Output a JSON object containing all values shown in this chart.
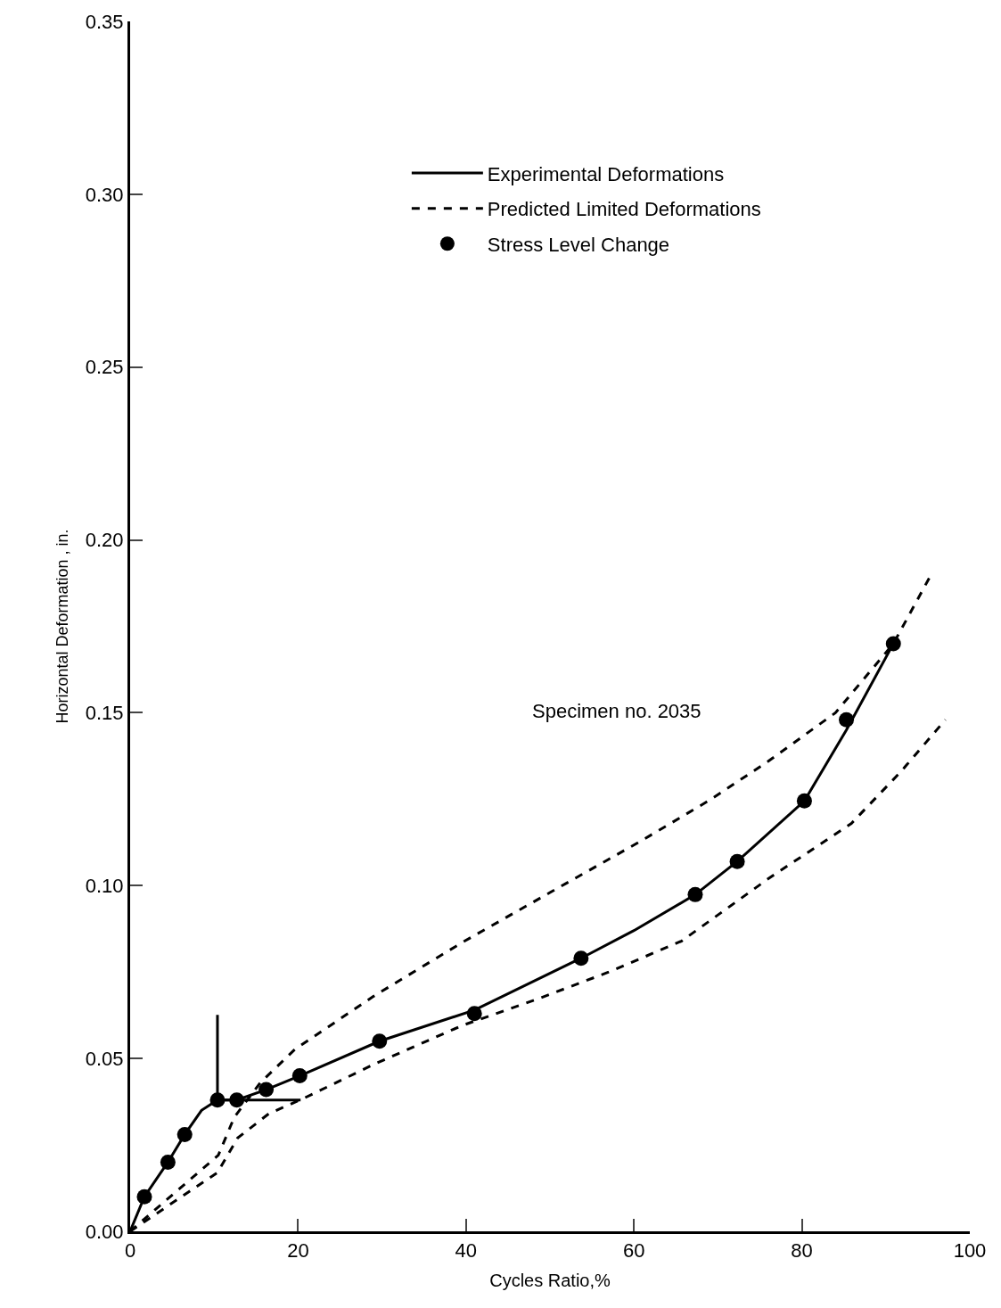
{
  "chart_data": {
    "type": "line",
    "xlabel": "Cycles Ratio,%",
    "ylabel": "Horizontal Deformation , in.",
    "xlim": [
      0,
      100
    ],
    "xticks": [
      0,
      20,
      40,
      60,
      80,
      100
    ],
    "ylim": [
      0,
      0.35
    ],
    "yticks": [
      {
        "value": 0,
        "label": "0.00"
      },
      {
        "value": 0.05,
        "label": "0.05"
      },
      {
        "value": 0.1,
        "label": "0.10"
      },
      {
        "value": 0.15,
        "label": "0.15"
      },
      {
        "value": 0.2,
        "label": "0.20"
      },
      {
        "value": 0.25,
        "label": "0.25"
      },
      {
        "value": 0.3,
        "label": "0.30"
      },
      {
        "value": 0.35,
        "label": "0.35"
      }
    ],
    "legend": "top right",
    "annotations": [
      "Specimen no. 2035"
    ],
    "series": [
      {
        "name": "Experimental Deformations",
        "color": "#000000",
        "line_style": "solid",
        "marker": "none",
        "x": [
          0,
          1.7,
          4.5,
          6.5,
          8.5,
          10.4,
          12.7,
          16.2,
          20.2,
          29.7,
          41,
          53.7,
          60,
          67.3,
          72.3,
          80.3,
          85.3,
          90.9
        ],
        "values": [
          0,
          0.01,
          0.02,
          0.028,
          0.035,
          0.038,
          0.038,
          0.041,
          0.045,
          0.055,
          0.064,
          0.079,
          0.087,
          0.0974,
          0.107,
          0.1245,
          0.145,
          0.17
        ]
      },
      {
        "name": "Predicted Limited Deformations",
        "color": "#000000",
        "line_style": "dashed",
        "marker": "none",
        "x": [
          0,
          10.5,
          12.4,
          15.5,
          19.6,
          29,
          39.5,
          50,
          60.9,
          69.2,
          76,
          84,
          90.9,
          95.4
        ],
        "values": [
          0,
          0.022,
          0.033,
          0.043,
          0.0526,
          0.068,
          0.0835,
          0.098,
          0.113,
          0.125,
          0.136,
          0.15,
          0.17,
          0.19
        ]
      },
      {
        "color": "#000000",
        "line_style": "dashed",
        "marker": "none",
        "x": [
          0,
          10.4,
          12.8,
          16.5,
          20.7,
          29.2,
          39.5,
          48.3,
          57,
          65.7,
          76,
          85.9,
          91.8,
          97.1
        ],
        "values": [
          0,
          0.017,
          0.027,
          0.034,
          0.0385,
          0.0485,
          0.0595,
          0.067,
          0.075,
          0.084,
          0.102,
          0.118,
          0.133,
          0.148
        ]
      },
      {
        "name": "Stress Level Change",
        "color": "#000000",
        "type": "scatter",
        "marker": "circle",
        "x": [
          1.7,
          4.5,
          6.5,
          10.4,
          12.7,
          16.2,
          20.2,
          29.7,
          41,
          53.7,
          67.3,
          72.3,
          80.3,
          85.3,
          90.9
        ],
        "values": [
          0.01,
          0.02,
          0.028,
          0.038,
          0.038,
          0.041,
          0.045,
          0.055,
          0.063,
          0.079,
          0.0974,
          0.107,
          0.1245,
          0.148,
          0.17
        ]
      },
      {
        "color": "#000000",
        "line_style": "solid",
        "marker": "none",
        "x": [
          10.4,
          10.4,
          20.3
        ],
        "values": [
          0.0626,
          0.038,
          0.038
        ]
      }
    ]
  }
}
